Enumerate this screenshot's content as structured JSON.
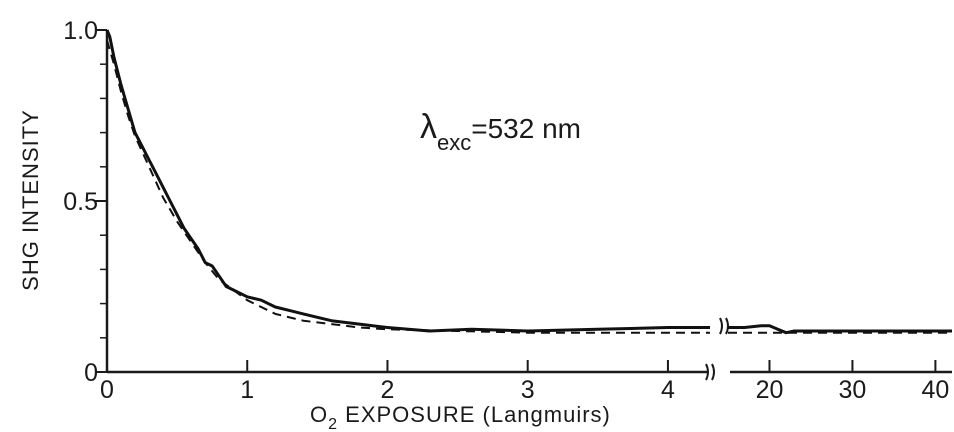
{
  "chart_data": {
    "type": "line",
    "ylabel": "SHG INTENSITY",
    "xlabel_main": "O",
    "xlabel_sub": "2",
    "xlabel_rest": " EXPOSURE (Langmuirs)",
    "annotation": {
      "symbol": "λ",
      "subscript": "exc",
      "text": "=532 nm"
    },
    "ylim": [
      0,
      1.0
    ],
    "y_ticks": [
      {
        "value": 0,
        "label": "0"
      },
      {
        "value": 0.5,
        "label": "0.5"
      },
      {
        "value": 1.0,
        "label": "1.0"
      }
    ],
    "y_minor_ticks": [
      0.1,
      0.2,
      0.3,
      0.4,
      0.6,
      0.7,
      0.8,
      0.9
    ],
    "x_segments": [
      {
        "xlim": [
          0,
          4.3
        ],
        "ticks": [
          {
            "value": 0,
            "label": "0"
          },
          {
            "value": 1,
            "label": "1"
          },
          {
            "value": 2,
            "label": "2"
          },
          {
            "value": 3,
            "label": "3"
          },
          {
            "value": 4,
            "label": "4"
          }
        ]
      },
      {
        "xlim": [
          15,
          42
        ],
        "ticks": [
          {
            "value": 20,
            "label": "20"
          },
          {
            "value": 30,
            "label": "30"
          },
          {
            "value": 40,
            "label": "40"
          }
        ]
      }
    ],
    "series": [
      {
        "style": "solid",
        "segment1": [
          [
            0,
            1.0
          ],
          [
            0.02,
            0.98
          ],
          [
            0.05,
            0.92
          ],
          [
            0.1,
            0.84
          ],
          [
            0.15,
            0.77
          ],
          [
            0.2,
            0.7
          ],
          [
            0.25,
            0.66
          ],
          [
            0.3,
            0.62
          ],
          [
            0.35,
            0.58
          ],
          [
            0.4,
            0.54
          ],
          [
            0.45,
            0.5
          ],
          [
            0.5,
            0.46
          ],
          [
            0.55,
            0.42
          ],
          [
            0.6,
            0.39
          ],
          [
            0.65,
            0.36
          ],
          [
            0.7,
            0.32
          ],
          [
            0.75,
            0.31
          ],
          [
            0.8,
            0.28
          ],
          [
            0.85,
            0.25
          ],
          [
            0.9,
            0.24
          ],
          [
            1.0,
            0.22
          ],
          [
            1.1,
            0.21
          ],
          [
            1.2,
            0.19
          ],
          [
            1.3,
            0.18
          ],
          [
            1.4,
            0.17
          ],
          [
            1.5,
            0.16
          ],
          [
            1.6,
            0.15
          ],
          [
            1.8,
            0.14
          ],
          [
            2.0,
            0.13
          ],
          [
            2.3,
            0.12
          ],
          [
            2.6,
            0.125
          ],
          [
            3.0,
            0.12
          ],
          [
            3.5,
            0.125
          ],
          [
            4.0,
            0.13
          ],
          [
            4.3,
            0.13
          ]
        ],
        "segment2": [
          [
            15,
            0.13
          ],
          [
            17,
            0.13
          ],
          [
            19,
            0.135
          ],
          [
            20,
            0.135
          ],
          [
            21,
            0.125
          ],
          [
            22,
            0.115
          ],
          [
            23,
            0.12
          ],
          [
            25,
            0.12
          ],
          [
            30,
            0.12
          ],
          [
            35,
            0.12
          ],
          [
            40,
            0.12
          ],
          [
            42,
            0.12
          ]
        ]
      },
      {
        "style": "dashed",
        "segment1": [
          [
            0,
            0.97
          ],
          [
            0.05,
            0.9
          ],
          [
            0.1,
            0.82
          ],
          [
            0.15,
            0.75
          ],
          [
            0.2,
            0.69
          ],
          [
            0.3,
            0.6
          ],
          [
            0.4,
            0.51
          ],
          [
            0.5,
            0.44
          ],
          [
            0.6,
            0.38
          ],
          [
            0.7,
            0.32
          ],
          [
            0.8,
            0.27
          ],
          [
            0.9,
            0.24
          ],
          [
            1.0,
            0.21
          ],
          [
            1.2,
            0.17
          ],
          [
            1.4,
            0.15
          ],
          [
            1.6,
            0.14
          ],
          [
            1.8,
            0.13
          ],
          [
            2.0,
            0.125
          ],
          [
            2.5,
            0.12
          ],
          [
            3.0,
            0.115
          ],
          [
            3.5,
            0.115
          ],
          [
            4.0,
            0.115
          ],
          [
            4.3,
            0.115
          ]
        ],
        "segment2": [
          [
            15,
            0.115
          ],
          [
            20,
            0.115
          ],
          [
            25,
            0.115
          ],
          [
            30,
            0.115
          ],
          [
            35,
            0.115
          ],
          [
            40,
            0.115
          ],
          [
            42,
            0.115
          ]
        ]
      }
    ],
    "grid": false
  }
}
